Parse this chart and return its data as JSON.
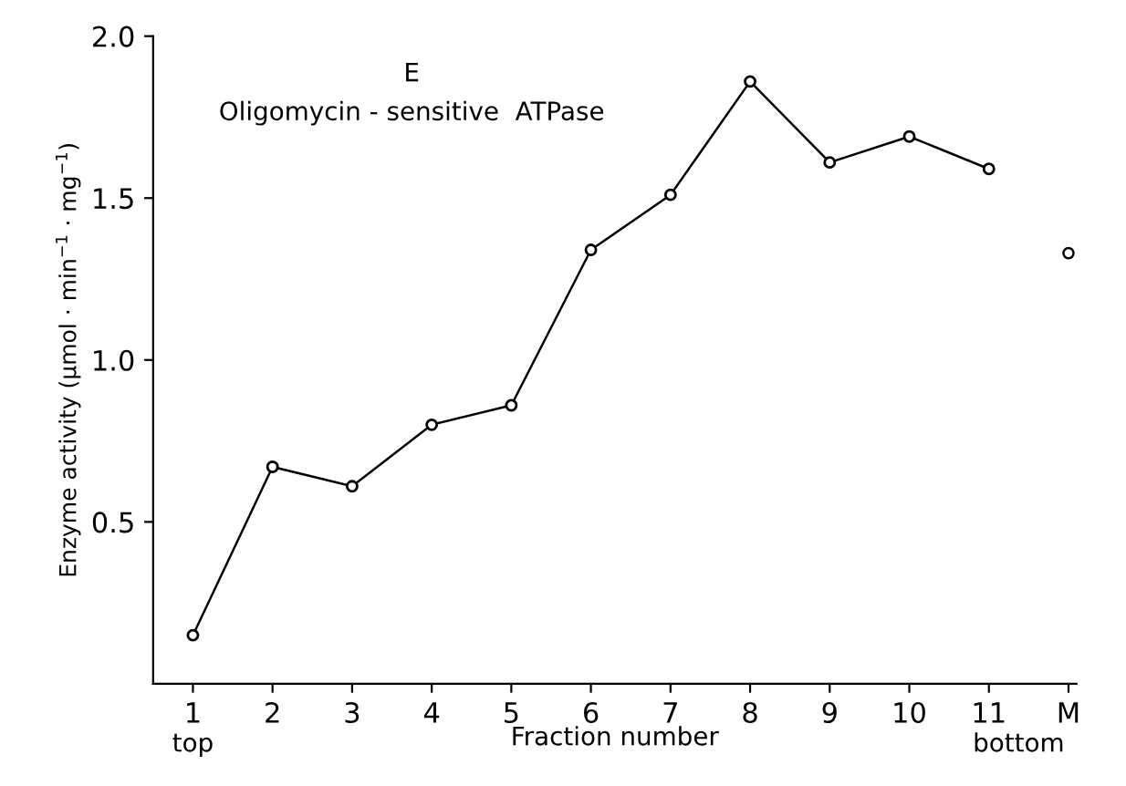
{
  "chart_data": {
    "type": "line",
    "title": "E",
    "subtitle": "Oligomycin - sensitive  ATPase",
    "xlabel": "Fraction number",
    "ylabel": "Enzyme activity (µmol · min$^{−1}$ · mg$^{−1}$)",
    "categories": [
      "1",
      "2",
      "3",
      "4",
      "5",
      "6",
      "7",
      "8",
      "9",
      "10",
      "11",
      "M"
    ],
    "series": [
      {
        "color": "#000000",
        "values": [
          0.15,
          0.67,
          0.61,
          0.8,
          0.86,
          1.34,
          1.51,
          1.86,
          1.61,
          1.69,
          1.59,
          null
        ]
      },
      {
        "type": "scatter",
        "color": "#000000",
        "values": [
          null,
          null,
          null,
          null,
          null,
          null,
          null,
          null,
          null,
          null,
          null,
          1.33
        ]
      }
    ],
    "ylim": [
      0,
      2.0
    ],
    "yticks": [
      {
        "value": 0.5,
        "label": "0.5"
      },
      {
        "value": 1.0,
        "label": "1.0"
      },
      {
        "value": 1.5,
        "label": "1.5"
      },
      {
        "value": 2.0,
        "label": "2.0"
      }
    ],
    "marker": "circle",
    "line_style": "solid",
    "grid": false,
    "legend": false,
    "annotations": [
      "top",
      "bottom"
    ]
  }
}
